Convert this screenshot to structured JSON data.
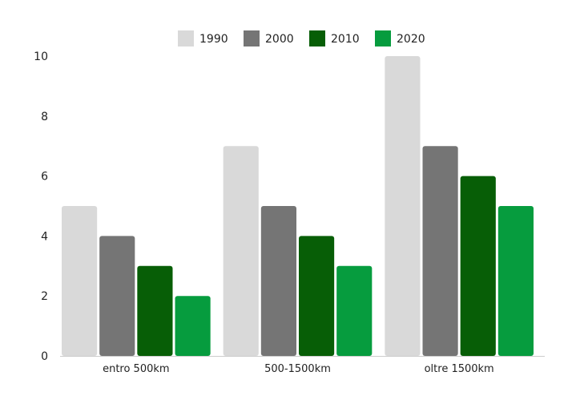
{
  "chart_data": {
    "type": "bar",
    "title": "",
    "xlabel": "",
    "ylabel": "",
    "categories": [
      "entro 500km",
      "500-1500km",
      "oltre 1500km"
    ],
    "series": [
      {
        "name": "1990",
        "color": "#d9d9d9",
        "values": [
          5,
          7,
          10
        ]
      },
      {
        "name": "2000",
        "color": "#757575",
        "values": [
          4,
          5,
          7
        ]
      },
      {
        "name": "2010",
        "color": "#075e06",
        "values": [
          3,
          4,
          6
        ]
      },
      {
        "name": "2020",
        "color": "#069c3e",
        "values": [
          2,
          3,
          5
        ]
      }
    ],
    "ylim": [
      0,
      10
    ],
    "yticks": [
      "0",
      "2",
      "4",
      "6",
      "8",
      "10"
    ],
    "grid": false,
    "legend_position": "top-center"
  }
}
